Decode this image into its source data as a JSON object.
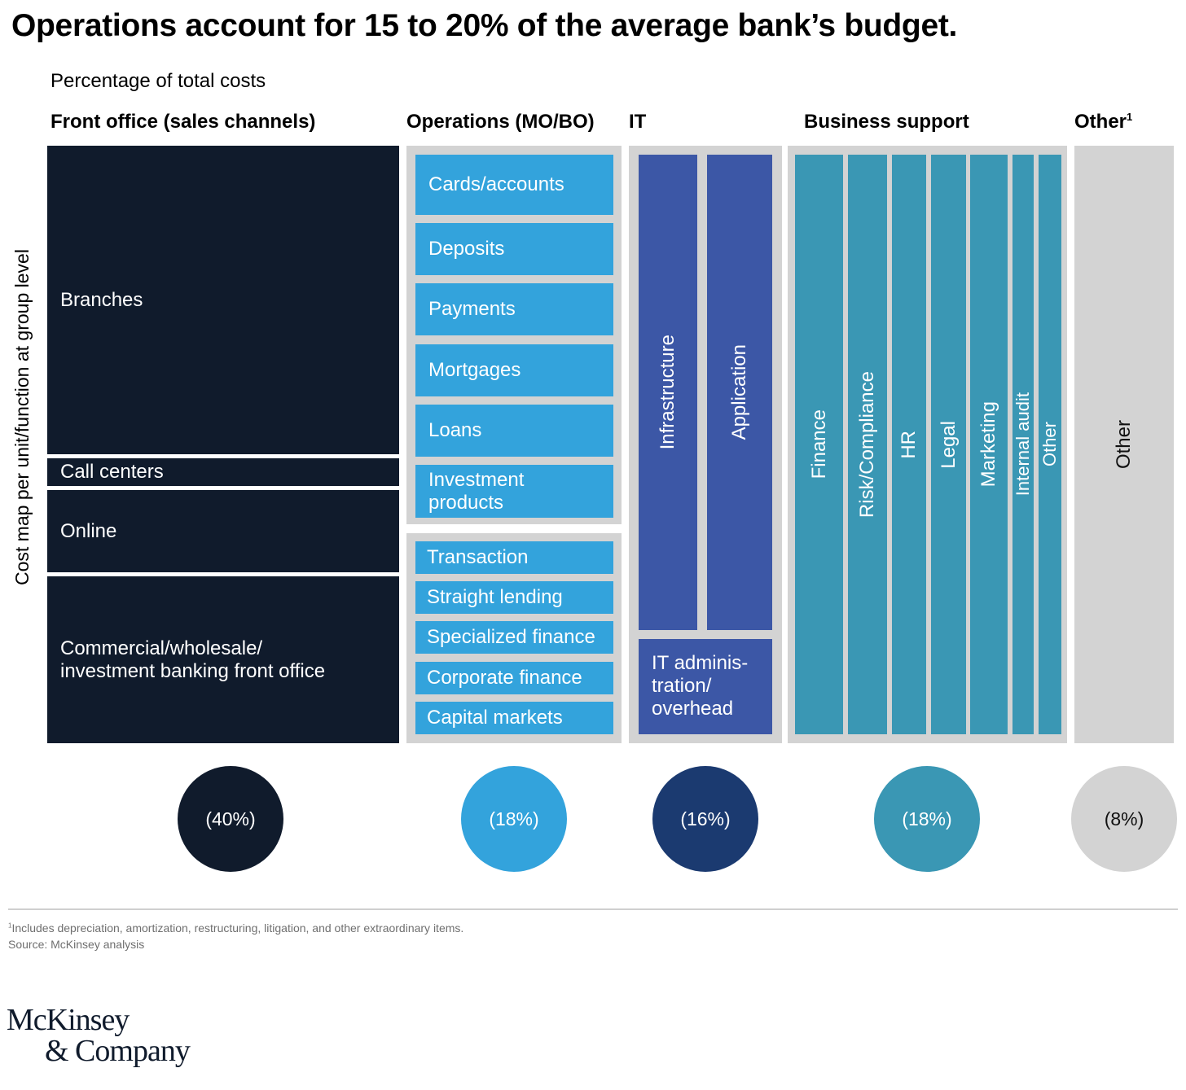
{
  "title": "Operations account for 15 to 20% of the average bank’s budget.",
  "subtitle": "Percentage of total costs",
  "y_axis_label": "Cost map per unit/function at group level",
  "colors": {
    "front_office": "#101b2c",
    "operations": "#33a3dc",
    "it": "#3c57a6",
    "it_circle": "#1b3a70",
    "business_support": "#3a97b4",
    "other": "#d3d3d3"
  },
  "chart_data": {
    "type": "treemap",
    "title": "Operations account for 15 to 20% of the average bank’s budget.",
    "subtitle": "Percentage of total costs",
    "ylabel": "Cost map per unit/function at group level",
    "categories": [
      {
        "name": "Front office (sales channels)",
        "share_label": "(40%)",
        "value": 40,
        "items": [
          "Branches",
          "Call centers",
          "Online",
          "Commercial/wholesale/ investment banking front office"
        ]
      },
      {
        "name": "Operations (MO/BO)",
        "share_label": "(18%)",
        "value": 18,
        "groups": [
          [
            "Cards/accounts",
            "Deposits",
            "Payments",
            "Mortgages",
            "Loans",
            "Investment products"
          ],
          [
            "Transaction",
            "Straight lending",
            "Specialized finance",
            "Corporate finance",
            "Capital markets"
          ]
        ]
      },
      {
        "name": "IT",
        "share_label": "(16%)",
        "value": 16,
        "items": [
          "Infrastructure",
          "Application",
          "IT adminis- tration/ overhead"
        ]
      },
      {
        "name": "Business support",
        "share_label": "(18%)",
        "value": 18,
        "items": [
          "Finance",
          "Risk/Compliance",
          "HR",
          "Legal",
          "Marketing",
          "Internal audit",
          "Other"
        ]
      },
      {
        "name": "Other",
        "footnote_mark": "1",
        "share_label": "(8%)",
        "value": 8,
        "items": [
          "Other"
        ]
      }
    ]
  },
  "footnote": "Includes depreciation, amortization, restructuring, litigation, and other extraordinary items.",
  "footnote_mark": "1",
  "source": "Source: McKinsey analysis",
  "logo": {
    "line1": "McKinsey",
    "line2": "& Company"
  }
}
